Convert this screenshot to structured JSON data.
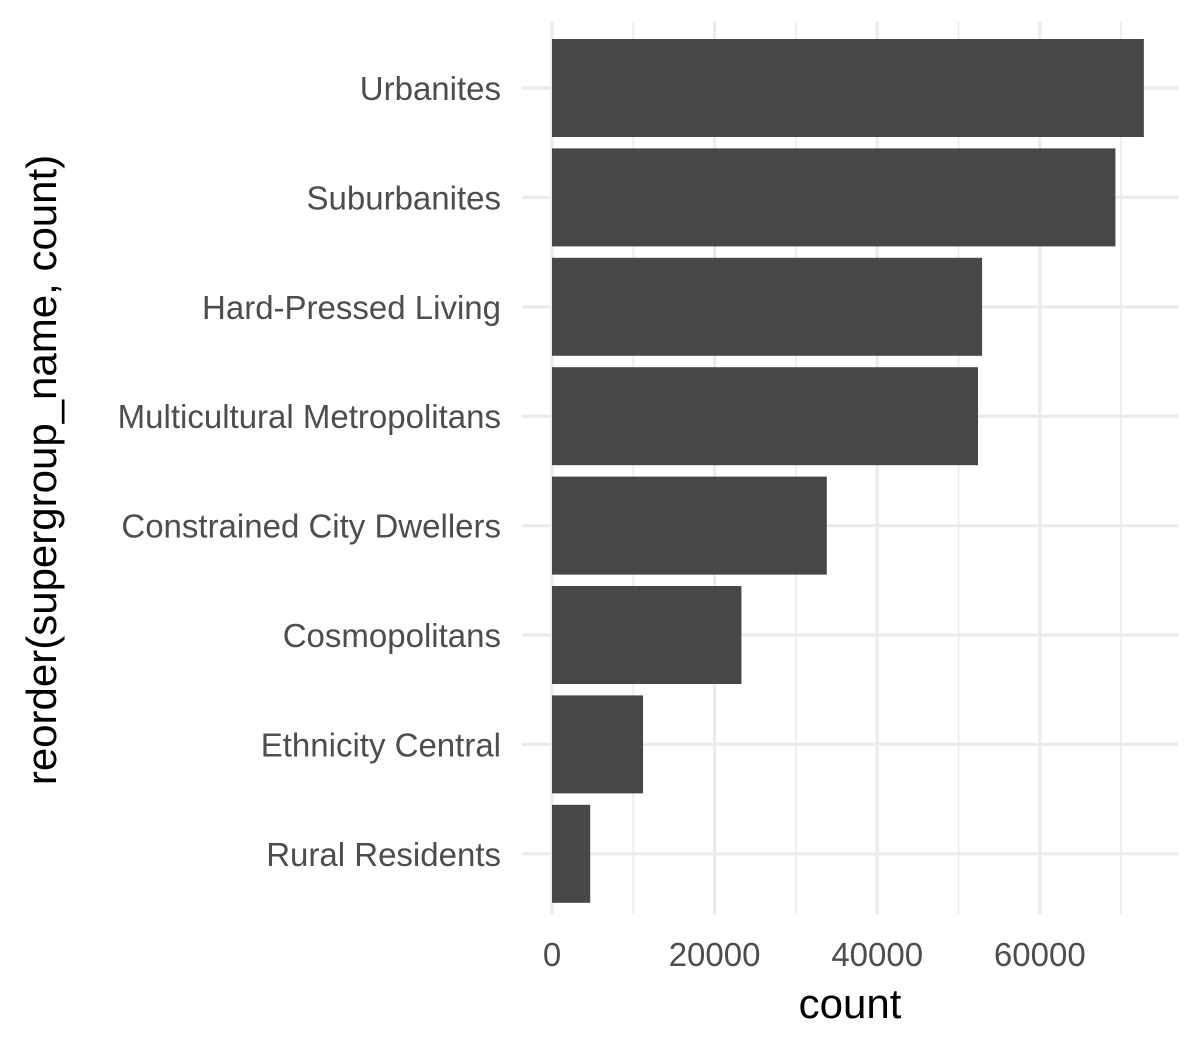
{
  "chart_data": {
    "type": "bar",
    "orientation": "horizontal",
    "categories": [
      "Urbanites",
      "Suburbanites",
      "Hard-Pressed Living",
      "Multicultural Metropolitans",
      "Constrained City Dwellers",
      "Cosmopolitans",
      "Ethnicity Central",
      "Rural Residents"
    ],
    "values": [
      72800,
      69300,
      52900,
      52400,
      33800,
      23300,
      11200,
      4700
    ],
    "xlabel": "count",
    "ylabel": "reorder(supergroup_name, count)",
    "xticks": [
      0,
      20000,
      40000,
      60000
    ],
    "xtick_labels": [
      "0",
      "20000",
      "40000",
      "60000"
    ],
    "xlim": [
      0,
      76000
    ],
    "grid": true,
    "bar_color": "#474747",
    "grid_color": "#ebebeb",
    "background": "#ffffff",
    "legend": "none"
  }
}
